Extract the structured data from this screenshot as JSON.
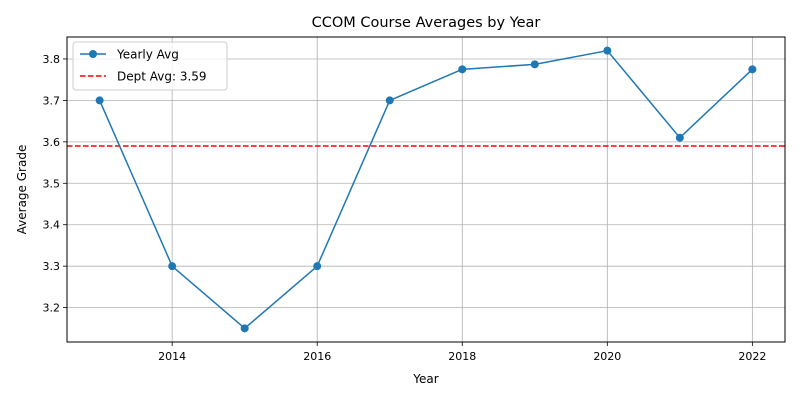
{
  "chart_data": {
    "type": "line",
    "title": "CCOM Course Averages by Year",
    "xlabel": "Year",
    "ylabel": "Average Grade",
    "xlim": [
      2012.55,
      2022.45
    ],
    "ylim": [
      3.117,
      3.853
    ],
    "xticks": [
      2014,
      2016,
      2018,
      2020,
      2022
    ],
    "yticks": [
      3.2,
      3.3,
      3.4,
      3.5,
      3.6,
      3.7,
      3.8
    ],
    "grid": true,
    "legend_position": "top-left",
    "series": [
      {
        "name": "Yearly Avg",
        "color": "#1f77b4",
        "marker": "circle",
        "x": [
          2013,
          2014,
          2015,
          2016,
          2017,
          2018,
          2019,
          2020,
          2021,
          2022
        ],
        "y": [
          3.7,
          3.3,
          3.15,
          3.3,
          3.7,
          3.775,
          3.787,
          3.82,
          3.61,
          3.775
        ]
      }
    ],
    "reference_lines": [
      {
        "label": "Dept Avg: 3.59",
        "value": 3.59,
        "color": "#ff0000",
        "style": "dashed"
      }
    ]
  }
}
